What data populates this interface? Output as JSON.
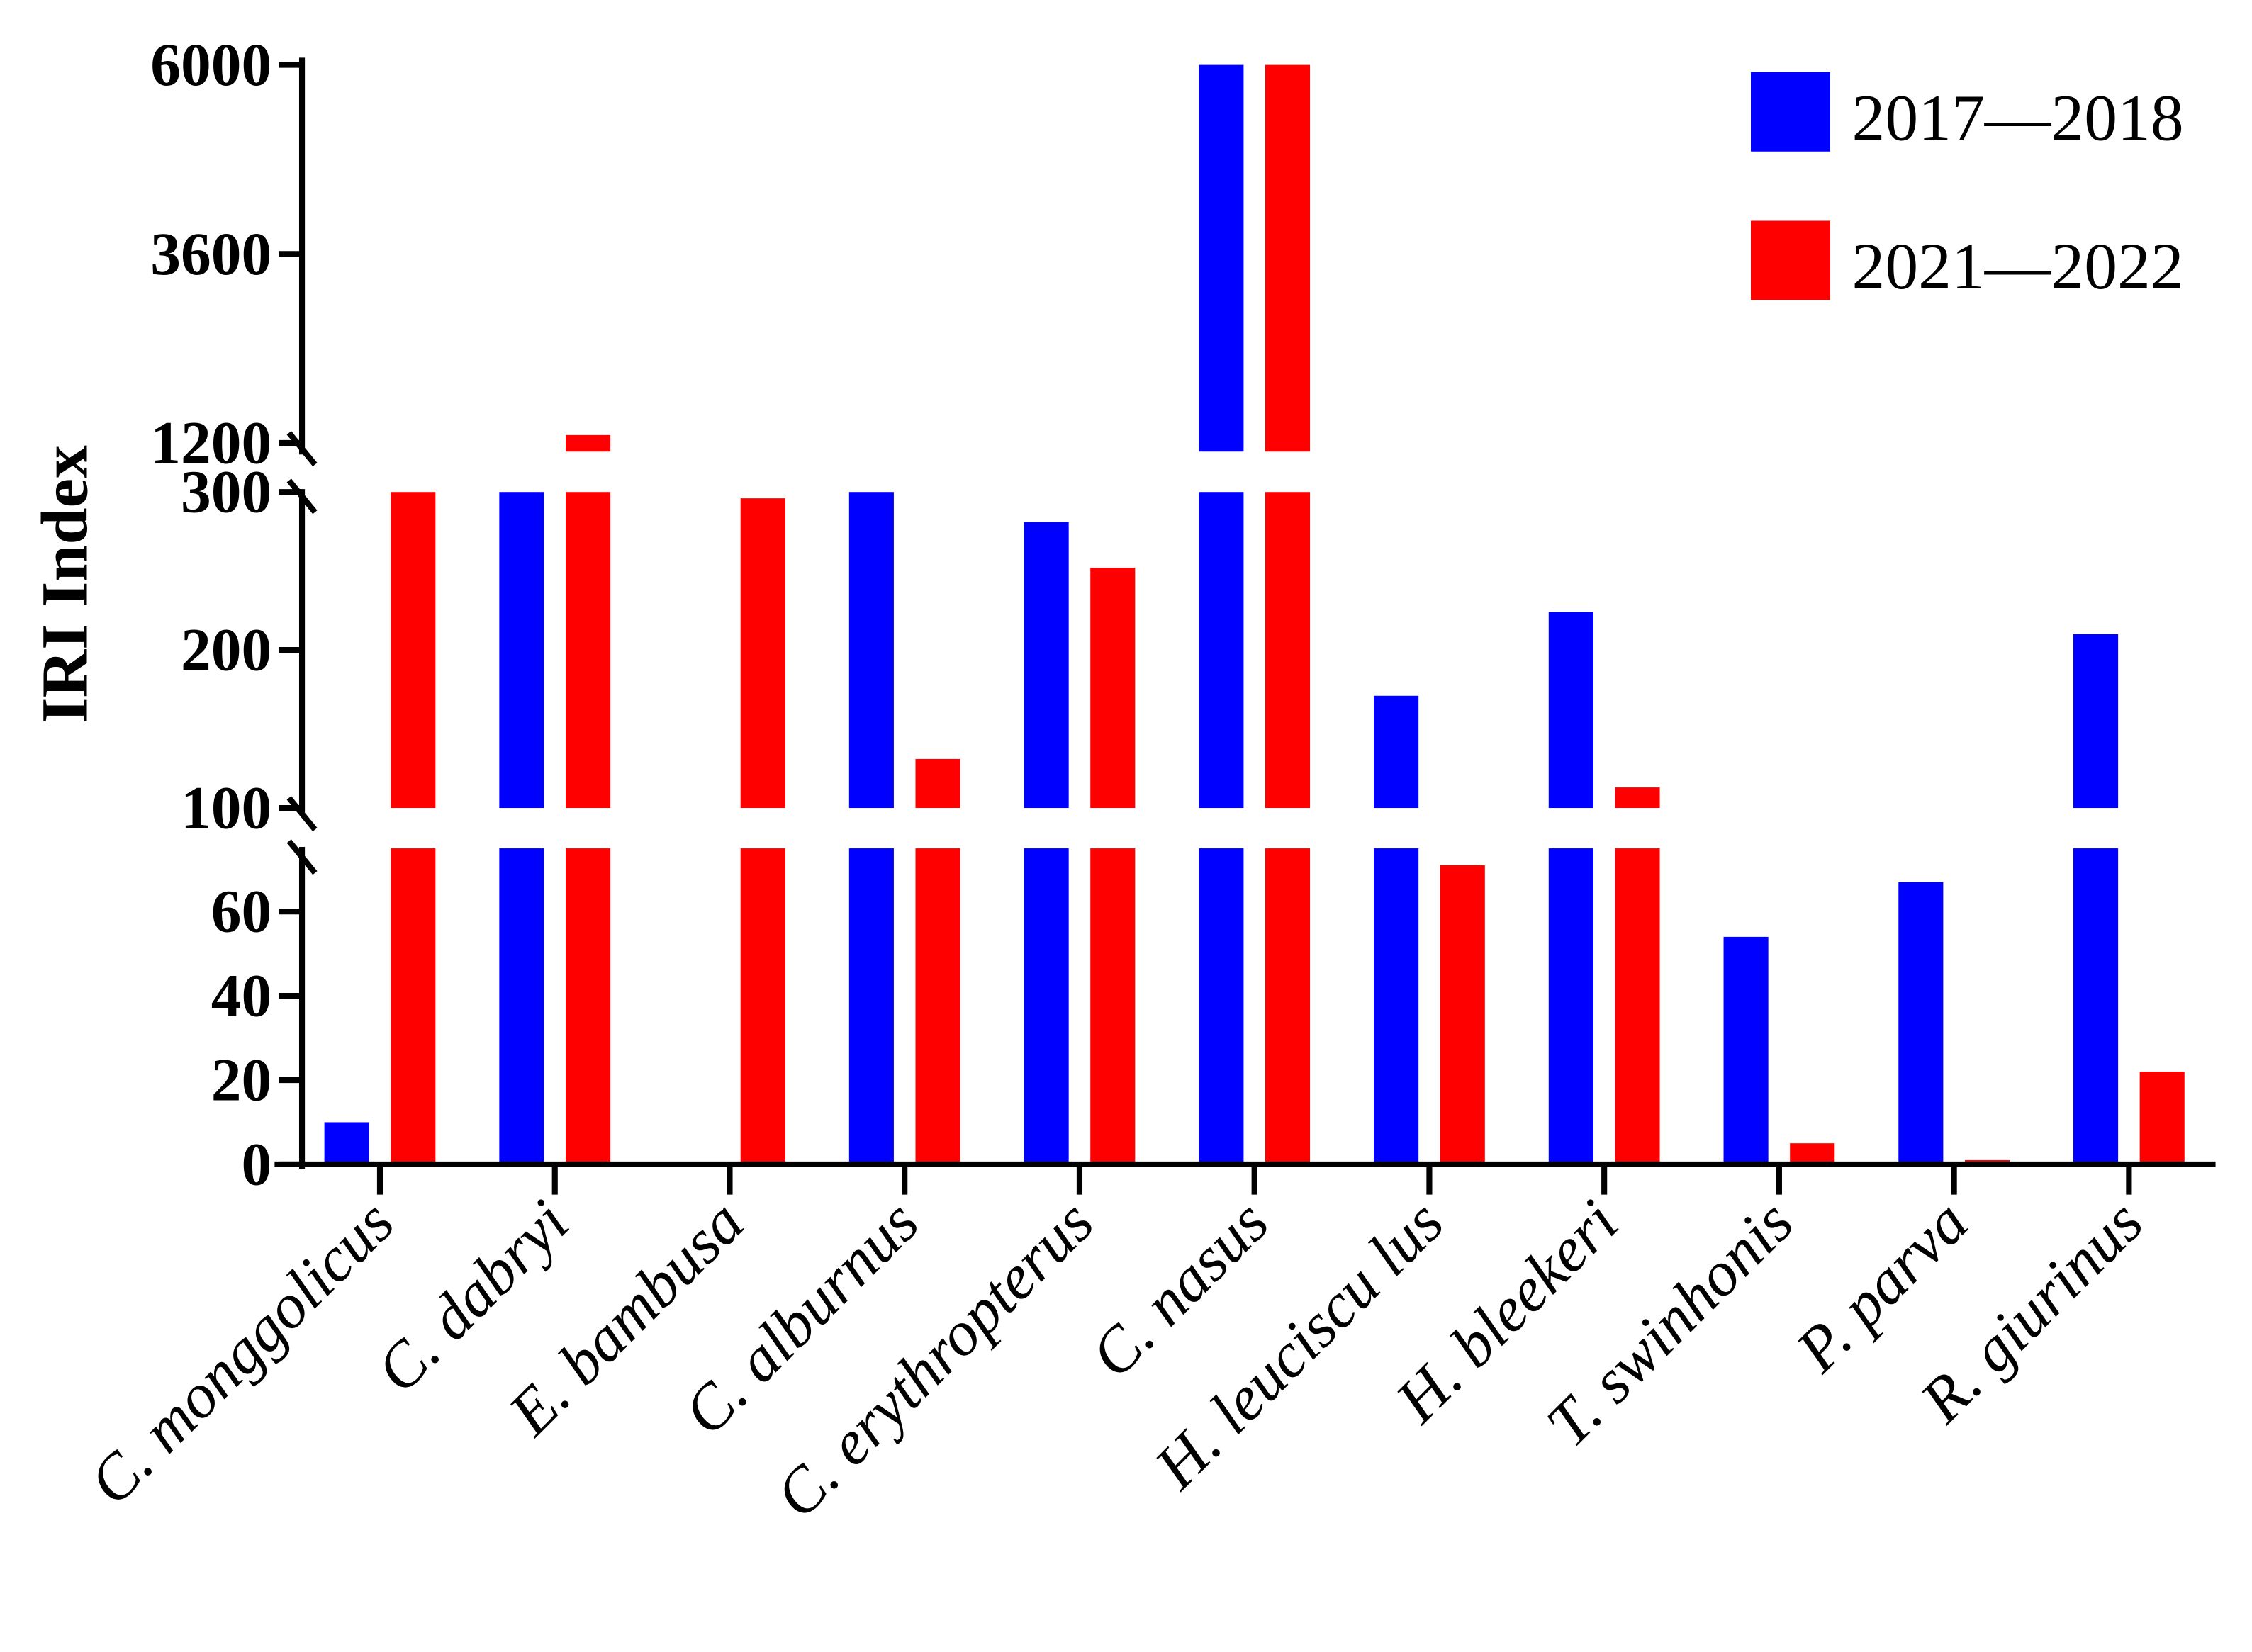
{
  "chart_data": {
    "type": "bar",
    "ylabel": "IRI Index",
    "xlabel": "",
    "categories": [
      "C. monggolicus",
      "C. dabryi",
      "E. bambusa",
      "C. alburnus",
      "C. erythropterus",
      "C. nasus",
      "H. leuciscu lus",
      "H. bleekeri",
      "T. swinhonis",
      "P. parva",
      "R. giurinus"
    ],
    "series": [
      {
        "name": "2017—2018",
        "color": "#0000ff",
        "values": [
          10,
          300,
          0,
          300,
          281,
          6100,
          171,
          224,
          54,
          67,
          210
        ]
      },
      {
        "name": "2021—2022",
        "color": "#ff0000",
        "values": [
          300,
          1300,
          296,
          131,
          252,
          6100,
          71,
          113,
          5,
          1,
          22
        ]
      }
    ],
    "y_axis": {
      "broken": true,
      "segments": [
        {
          "range": [
            0,
            75
          ],
          "ticks": [
            "0",
            "20",
            "40",
            "60"
          ]
        },
        {
          "range": [
            100,
            300
          ],
          "ticks": [
            "100",
            "200",
            "300"
          ]
        },
        {
          "range": [
            1200,
            6000
          ],
          "ticks": [
            "1200",
            "3600",
            "6000"
          ]
        }
      ]
    },
    "legend_position": "top-right",
    "grid": false
  }
}
